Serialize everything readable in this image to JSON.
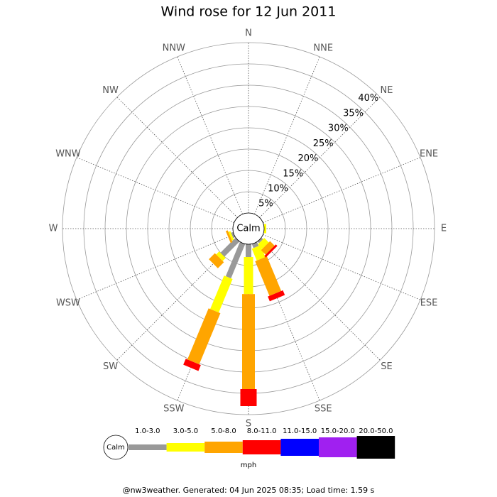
{
  "chart_data": {
    "type": "windrose",
    "title": "Wind rose for 12 Jun 2011",
    "directions": [
      "N",
      "NNE",
      "NE",
      "ENE",
      "E",
      "ESE",
      "SE",
      "SSE",
      "S",
      "SSW",
      "SW",
      "WSW",
      "W",
      "WNW",
      "NW",
      "NNW"
    ],
    "series": [
      {
        "name": "1.0-3.0",
        "color": "#999999",
        "values": [
          0,
          0,
          0,
          0,
          0,
          0,
          0.5,
          1,
          3,
          8.7,
          5,
          0.5,
          0,
          0,
          0,
          0
        ]
      },
      {
        "name": "3.0-5.0",
        "color": "#ffff00",
        "values": [
          0,
          0,
          0,
          0,
          0.5,
          0,
          1.5,
          3,
          8.7,
          8.5,
          1,
          0.5,
          0,
          0,
          0,
          0
        ]
      },
      {
        "name": "5.0-8.0",
        "color": "#ffa500",
        "values": [
          0,
          0,
          0,
          0,
          0,
          0,
          1.5,
          8.8,
          22.3,
          13,
          2,
          0.5,
          0,
          0,
          0,
          0
        ]
      },
      {
        "name": "8.0-11.0",
        "color": "#ff0000",
        "values": [
          0,
          0,
          0,
          0,
          0,
          0,
          0.5,
          1.2,
          4,
          1.5,
          0,
          0,
          0,
          0,
          0,
          0
        ]
      },
      {
        "name": "11.0-15.0",
        "color": "#0000ff",
        "values": [
          0,
          0,
          0,
          0,
          0,
          0,
          0,
          0,
          0,
          0,
          0,
          0,
          0,
          0,
          0,
          0
        ]
      },
      {
        "name": "15.0-20.0",
        "color": "#a020f0",
        "values": [
          0,
          0,
          0,
          0,
          0,
          0,
          0,
          0,
          0,
          0,
          0,
          0,
          0,
          0,
          0,
          0
        ]
      },
      {
        "name": "20.0-50.0",
        "color": "#000000",
        "values": [
          0,
          0,
          0,
          0,
          0,
          0,
          0,
          0,
          0,
          0,
          0,
          0,
          0,
          0,
          0,
          0
        ]
      }
    ],
    "rlim": [
      0,
      40
    ],
    "rticks": [
      {
        "value": 5,
        "label": "5%"
      },
      {
        "value": 10,
        "label": "10%"
      },
      {
        "value": 15,
        "label": "15%"
      },
      {
        "value": 20,
        "label": "20%"
      },
      {
        "value": 25,
        "label": "25%"
      },
      {
        "value": 30,
        "label": "30%"
      },
      {
        "value": 35,
        "label": "35%"
      },
      {
        "value": 40,
        "label": "40%"
      }
    ],
    "calm_label": "Calm",
    "unit": "mph",
    "footer": "@nw3weather. Generated: 04 Jun 2025 08:35; Load time: 1.59 s"
  }
}
